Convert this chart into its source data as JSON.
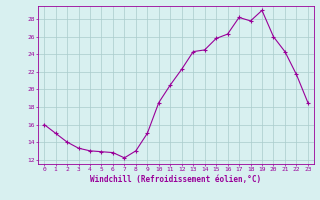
{
  "x": [
    0,
    1,
    2,
    3,
    4,
    5,
    6,
    7,
    8,
    9,
    10,
    11,
    12,
    13,
    14,
    15,
    16,
    17,
    18,
    19,
    20,
    21,
    22,
    23
  ],
  "y": [
    16.0,
    15.0,
    14.0,
    13.3,
    13.0,
    12.9,
    12.8,
    12.2,
    13.0,
    15.0,
    18.5,
    20.5,
    22.3,
    24.3,
    24.5,
    25.8,
    26.3,
    28.2,
    27.8,
    29.0,
    26.0,
    24.3,
    21.7,
    18.5
  ],
  "line_color": "#990099",
  "marker": "+",
  "bg_color": "#d8f0f0",
  "grid_color": "#aacccc",
  "xlabel": "Windchill (Refroidissement éolien,°C)",
  "xlabel_color": "#990099",
  "ylabel_ticks": [
    12,
    14,
    16,
    18,
    20,
    22,
    24,
    26,
    28
  ],
  "ylim": [
    11.5,
    29.5
  ],
  "xlim": [
    -0.5,
    23.5
  ],
  "xtick_labels": [
    "0",
    "1",
    "2",
    "3",
    "4",
    "5",
    "6",
    "7",
    "8",
    "9",
    "10",
    "11",
    "12",
    "13",
    "14",
    "15",
    "16",
    "17",
    "18",
    "19",
    "20",
    "21",
    "22",
    "23"
  ],
  "tick_color": "#990099",
  "axis_color": "#990099",
  "title_color": "#990099"
}
